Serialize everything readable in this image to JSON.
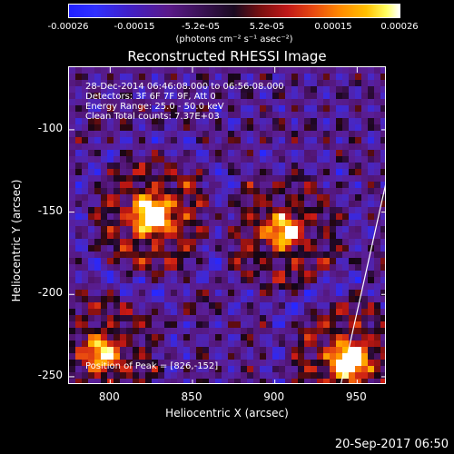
{
  "colorbar": {
    "ticks": [
      "-0.00026",
      "-0.00015",
      "-5.2e-05",
      "5.2e-05",
      "0.00015",
      "0.00026"
    ],
    "units": "(photons cm⁻² s⁻¹ asec⁻²)"
  },
  "title": "Reconstructed RHESSI Image",
  "annotation": {
    "line1": "28-Dec-2014 06:46:08.000 to 06:56:08.000",
    "line2": "Detectors: 3F 6F 7F 9F, Att 0",
    "line3": "Energy Range: 25.0 - 50.0 keV",
    "line4": "Clean     Total counts: 7.37E+03",
    "peak": "Position of Peak = [826,-152]"
  },
  "chart_data": {
    "type": "heatmap",
    "title": "Reconstructed RHESSI Image",
    "xlabel": "Heliocentric X (arcsec)",
    "ylabel": "Heliocentric Y (arcsec)",
    "xlim": [
      775,
      968
    ],
    "ylim": [
      -255,
      -62
    ],
    "xticks": [
      "800",
      "850",
      "900",
      "950"
    ],
    "yticks": [
      "-100",
      "-150",
      "-200",
      "-250"
    ],
    "colorbar_range": [
      -0.00026,
      0.00026
    ],
    "peak": [
      826,
      -152
    ],
    "sources": [
      {
        "x": 826,
        "y": -152,
        "level": 1.0
      },
      {
        "x": 905,
        "y": -162,
        "level": 0.75
      },
      {
        "x": 945,
        "y": -240,
        "level": 0.95
      },
      {
        "x": 795,
        "y": -235,
        "level": 0.7
      }
    ],
    "limb": [
      [
        968,
        -130
      ],
      [
        940,
        -255
      ]
    ]
  },
  "footer": {
    "timestamp": "20-Sep-2017 06:50"
  }
}
